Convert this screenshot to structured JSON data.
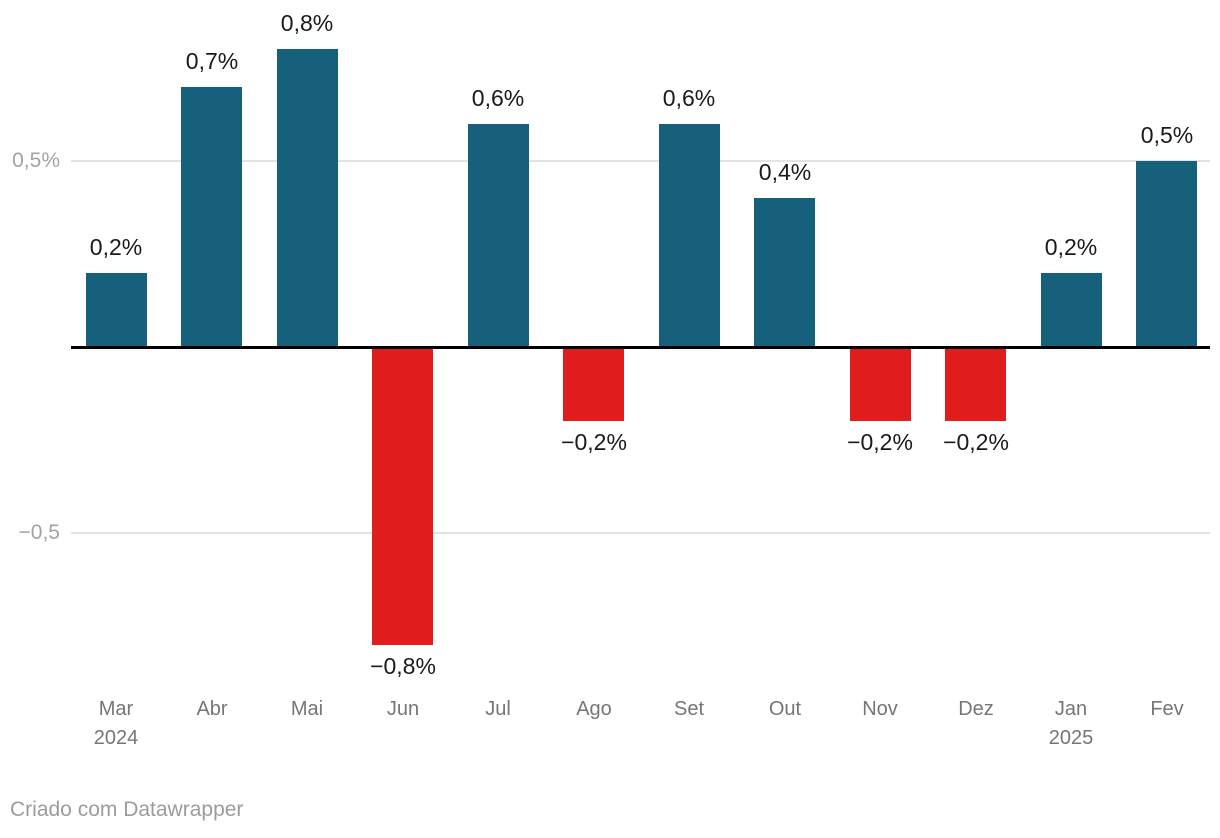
{
  "chart_data": {
    "type": "bar",
    "title": "",
    "xlabel": "",
    "ylabel": "",
    "categories": [
      "Mar",
      "Abr",
      "Mai",
      "Jun",
      "Jul",
      "Ago",
      "Set",
      "Out",
      "Nov",
      "Dez",
      "Jan",
      "Fev"
    ],
    "category_sublabels": [
      "2024",
      "",
      "",
      "",
      "",
      "",
      "",
      "",
      "",
      "",
      "2025",
      ""
    ],
    "values": [
      0.2,
      0.7,
      0.8,
      -0.8,
      0.6,
      -0.2,
      0.6,
      0.4,
      -0.2,
      -0.2,
      0.2,
      0.5
    ],
    "value_labels": [
      "0,2%",
      "0,7%",
      "0,8%",
      "−0,8%",
      "0,6%",
      "−0,2%",
      "0,6%",
      "0,4%",
      "−0,2%",
      "−0,2%",
      "0,2%",
      "0,5%"
    ],
    "unit": "%",
    "decimal_separator": ",",
    "y_axis": {
      "baseline": 0,
      "range": [
        -0.9,
        0.95
      ],
      "ticks": [
        {
          "value": 0.5,
          "label": "0,5%"
        },
        {
          "value": -0.5,
          "label": "−0,5"
        }
      ]
    },
    "grid": true,
    "legend": "none",
    "colors": {
      "positive": "#16607b",
      "negative": "#e01d1c",
      "baseline": "#000000",
      "gridline": "#e3e3e3",
      "value_label": "#1a1a1a",
      "x_tick_label": "#767676",
      "y_tick_label": "#a3a3a3"
    }
  },
  "footer": {
    "attribution": "Criado com Datawrapper"
  }
}
